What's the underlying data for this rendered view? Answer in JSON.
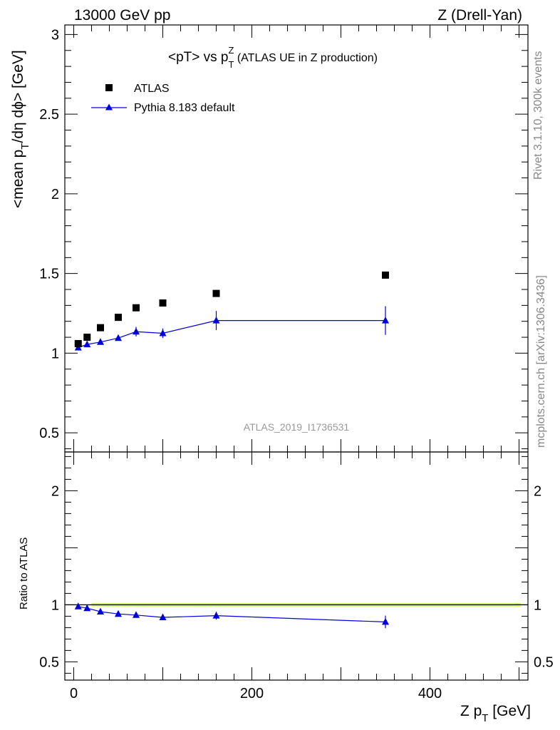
{
  "header": {
    "energy": "13000 GeV pp",
    "process": "Z (Drell-Yan)"
  },
  "side_text": {
    "generator": "Rivet 3.1.10,  300k events",
    "source": "mcplots.cern.ch [arXiv:1306.3436]"
  },
  "chart_data": [
    {
      "type": "scatter",
      "title": "<pT> vs pTZ (ATLAS UE in Z production)",
      "title_parts": {
        "main": "<pT> vs p",
        "sub": "T",
        "sup": "Z",
        "tail": " (ATLAS UE in Z production)"
      },
      "ylabel": "<mean pT/dη dϕ> [GeV]",
      "ylabel_parts": {
        "pre": "<mean p",
        "sub": "T",
        "post": "/dη dϕ> [GeV]"
      },
      "analysis_id": "ATLAS_2019_I1736531",
      "xlim": [
        -10,
        510
      ],
      "ylim": [
        0.38,
        3.06
      ],
      "yticks": [
        0.5,
        1,
        1.5,
        2,
        2.5,
        3
      ],
      "ytick_labels": [
        "0.5",
        "1",
        "1.5",
        "2",
        "2.5",
        "3"
      ],
      "legend": "top-left",
      "series": [
        {
          "name": "ATLAS",
          "marker": "square",
          "color": "#000000",
          "x": [
            5,
            15,
            30,
            50,
            70,
            100,
            160,
            350
          ],
          "y": [
            1.06,
            1.1,
            1.16,
            1.225,
            1.285,
            1.315,
            1.375,
            1.49
          ]
        },
        {
          "name": "Pythia 8.183 default",
          "marker": "triangle",
          "color": "#0000dd",
          "x": [
            5,
            15,
            30,
            50,
            70,
            100,
            160,
            350
          ],
          "y": [
            1.035,
            1.055,
            1.07,
            1.095,
            1.135,
            1.125,
            1.205,
            1.205
          ],
          "yerr": [
            0.012,
            0.012,
            0.012,
            0.015,
            0.03,
            0.03,
            0.06,
            0.09
          ]
        }
      ]
    },
    {
      "type": "line",
      "ylabel": "Ratio to ATLAS",
      "xlabel": "Z pT [GeV]",
      "xlabel_parts": {
        "pre": "Z p",
        "sub": "T",
        "post": " [GeV]"
      },
      "xlim": [
        -10,
        510
      ],
      "ylim": [
        0.34,
        2.34
      ],
      "xticks": [
        0,
        200,
        400
      ],
      "xtick_labels": [
        "0",
        "200",
        "400"
      ],
      "yticks": [
        0.5,
        1,
        2
      ],
      "ytick_labels": [
        "0.5",
        "1",
        "2"
      ],
      "band": {
        "color": "#ccff66",
        "y_low": 0.985,
        "y_high": 1.015
      },
      "series": [
        {
          "name": "Pythia 8.183 default / ATLAS",
          "color": "#0000dd",
          "x": [
            5,
            15,
            30,
            50,
            70,
            100,
            160,
            350
          ],
          "y": [
            0.985,
            0.97,
            0.94,
            0.92,
            0.91,
            0.89,
            0.905,
            0.85
          ],
          "yerr": [
            0.01,
            0.01,
            0.01,
            0.012,
            0.02,
            0.02,
            0.035,
            0.055
          ]
        }
      ]
    }
  ]
}
